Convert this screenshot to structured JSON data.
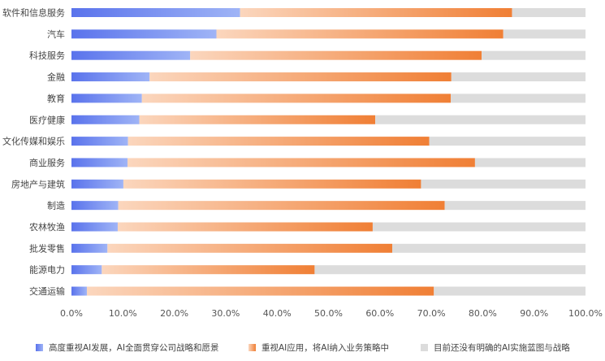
{
  "chart_data": {
    "type": "bar",
    "orientation": "horizontal",
    "stacked": true,
    "categories": [
      "软件和信息服务",
      "汽车",
      "科技服务",
      "金融",
      "教育",
      "医疗健康",
      "文化传媒和娱乐",
      "商业服务",
      "房地产与建筑",
      "制造",
      "农林牧渔",
      "批发零售",
      "能源电力",
      "交通运输"
    ],
    "series": [
      {
        "name": "高度重视AI发展，AI全面贯穿公司战略和愿景",
        "values": [
          0.328,
          0.282,
          0.231,
          0.152,
          0.137,
          0.132,
          0.11,
          0.109,
          0.101,
          0.091,
          0.09,
          0.07,
          0.059,
          0.03
        ],
        "color_start": "#5a73ec",
        "color_end": "#9fb4f6"
      },
      {
        "name": "重视AI应用，将AI纳入业务策略中",
        "values": [
          0.529,
          0.558,
          0.567,
          0.587,
          0.601,
          0.459,
          0.586,
          0.676,
          0.579,
          0.635,
          0.496,
          0.554,
          0.414,
          0.675
        ],
        "color_start": "#fbd6bd",
        "color_end": "#f07f35"
      },
      {
        "name": "目前还没有明确的AI实施蓝图与战略",
        "values": [
          0.143,
          0.16,
          0.202,
          0.261,
          0.262,
          0.409,
          0.304,
          0.215,
          0.32,
          0.274,
          0.414,
          0.376,
          0.527,
          0.295
        ],
        "color": "#dcdcdc"
      }
    ],
    "xlim": [
      0,
      1
    ],
    "xticks": [
      "0.0%",
      "10.0%",
      "20.0%",
      "30.0%",
      "40.0%",
      "50.0%",
      "60.0%",
      "70.0%",
      "80.0%",
      "90.0%",
      "100.0%"
    ],
    "grid": false,
    "legend_position": "bottom"
  }
}
